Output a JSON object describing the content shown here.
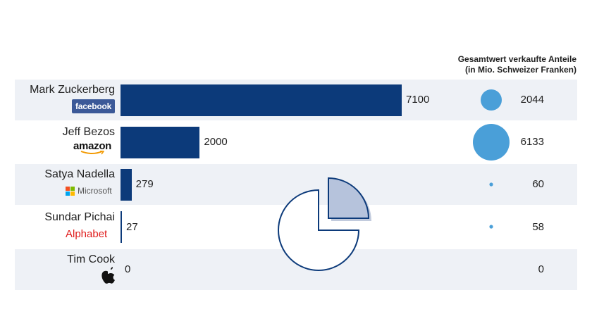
{
  "legend": {
    "line1": "Gesamtwert verkaufte Anteile",
    "line2": "(in Mio. Schweizer Franken)"
  },
  "rows": [
    {
      "name": "Mark Zuckerberg",
      "logo": "facebook",
      "bar_label": "7100",
      "bubble_label": "2044"
    },
    {
      "name": "Jeff Bezos",
      "logo": "amazon",
      "bar_label": "2000",
      "bubble_label": "6133"
    },
    {
      "name": "Satya Nadella",
      "logo": "Microsoft",
      "bar_label": "279",
      "bubble_label": "60"
    },
    {
      "name": "Sundar Pichai",
      "logo": "Alphabet",
      "bar_label": "27",
      "bubble_label": "58"
    },
    {
      "name": "Tim Cook",
      "logo": "apple-icon",
      "bar_label": "0",
      "bubble_label": "0"
    }
  ],
  "colors": {
    "bar": "#0c3a7a",
    "bubble": "#4a9fd8",
    "row_bg": "#eef1f6",
    "facebook": "#3b5998",
    "alphabet": "#e01c1c"
  },
  "chart_data": {
    "type": "bar",
    "categories": [
      "Mark Zuckerberg",
      "Jeff Bezos",
      "Satya Nadella",
      "Sundar Pichai",
      "Tim Cook"
    ],
    "series": [
      {
        "values": [
          7100,
          2000,
          279,
          27,
          0
        ]
      },
      {
        "name": "Gesamtwert verkaufte Anteile (in Mio. Schweizer Franken)",
        "values": [
          2044,
          6133,
          60,
          58,
          0
        ]
      }
    ],
    "orientation": "horizontal",
    "xlim": [
      0,
      7100
    ],
    "grid": false,
    "legend": "top-right"
  }
}
